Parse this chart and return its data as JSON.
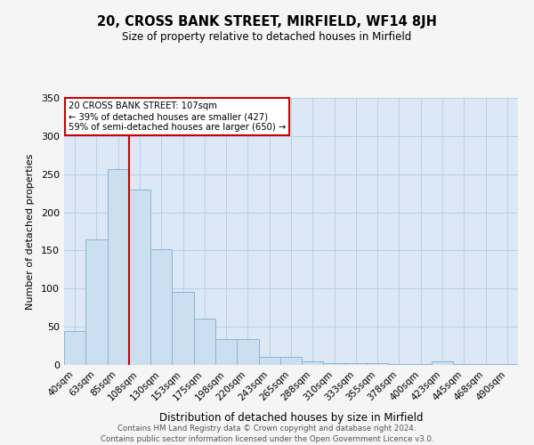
{
  "title": "20, CROSS BANK STREET, MIRFIELD, WF14 8JH",
  "subtitle": "Size of property relative to detached houses in Mirfield",
  "xlabel": "Distribution of detached houses by size in Mirfield",
  "ylabel": "Number of detached properties",
  "bin_labels": [
    "40sqm",
    "63sqm",
    "85sqm",
    "108sqm",
    "130sqm",
    "153sqm",
    "175sqm",
    "198sqm",
    "220sqm",
    "243sqm",
    "265sqm",
    "288sqm",
    "310sqm",
    "333sqm",
    "355sqm",
    "378sqm",
    "400sqm",
    "423sqm",
    "445sqm",
    "468sqm",
    "490sqm"
  ],
  "bar_values": [
    44,
    165,
    257,
    230,
    152,
    96,
    61,
    34,
    34,
    11,
    11,
    5,
    2,
    2,
    2,
    1,
    1,
    5,
    1,
    1,
    1
  ],
  "bar_color": "#ccdff0",
  "bar_edge_color": "#8ab4d4",
  "marker_line_color": "#cc0000",
  "annotation_line1": "20 CROSS BANK STREET: 107sqm",
  "annotation_line2": "← 39% of detached houses are smaller (427)",
  "annotation_line3": "59% of semi-detached houses are larger (650) →",
  "annotation_box_facecolor": "#ffffff",
  "annotation_box_edgecolor": "#cc0000",
  "grid_color": "#b8cfe8",
  "bg_color": "#dce8f5",
  "fig_bg_color": "#f5f5f5",
  "ylim": [
    0,
    350
  ],
  "yticks": [
    0,
    50,
    100,
    150,
    200,
    250,
    300,
    350
  ],
  "footer_line1": "Contains HM Land Registry data © Crown copyright and database right 2024.",
  "footer_line2": "Contains public sector information licensed under the Open Government Licence v3.0."
}
